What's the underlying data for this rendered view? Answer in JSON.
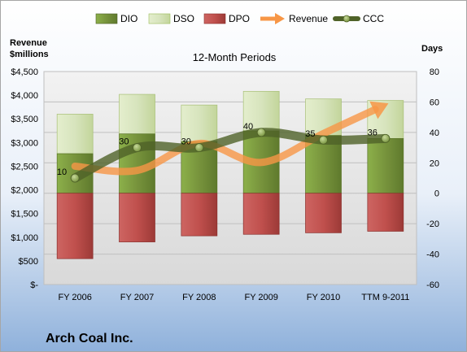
{
  "company": "Arch Coal Inc.",
  "chart_data": {
    "type": "bar",
    "title": "12-Month Periods",
    "left_axis_label": [
      "Revenue",
      "$millions"
    ],
    "right_axis_label": "Days",
    "categories": [
      "FY 2006",
      "FY 2007",
      "FY 2008",
      "FY 2009",
      "FY 2010",
      "TTM 9-2011"
    ],
    "left_ticks": [
      "$-",
      "$500",
      "$1,000",
      "$1,500",
      "$2,000",
      "$2,500",
      "$3,000",
      "$3,500",
      "$4,000",
      "$4,500"
    ],
    "right_ticks": [
      "-60",
      "-40",
      "-20",
      "0",
      "20",
      "40",
      "60",
      "80"
    ],
    "left_ylim": [
      0,
      4500
    ],
    "right_ylim": [
      -60,
      80
    ],
    "series": [
      {
        "name": "DIO",
        "kind": "bar-stacked-positive",
        "axis": "right",
        "color": "#77933c",
        "values": [
          26,
          39,
          34,
          41,
          38,
          36
        ]
      },
      {
        "name": "DSO",
        "kind": "bar-stacked-positive",
        "axis": "right",
        "color": "#d7e4bd",
        "values": [
          26,
          26,
          24,
          26,
          24,
          25
        ]
      },
      {
        "name": "DPO",
        "kind": "bar-negative",
        "axis": "right",
        "color": "#c0504d",
        "values": [
          -43,
          -32,
          -28,
          -27,
          -26,
          -25
        ]
      },
      {
        "name": "Revenue",
        "kind": "arrow-line",
        "axis": "left",
        "color": "#f79646",
        "values": [
          2500,
          2410,
          2980,
          2580,
          3190,
          3800
        ]
      },
      {
        "name": "CCC",
        "kind": "line-markers",
        "axis": "right",
        "color": "#4f6228",
        "values": [
          10,
          30,
          30,
          40,
          35,
          36
        ],
        "labels": [
          "10",
          "30",
          "30",
          "40",
          "35",
          "36"
        ]
      }
    ],
    "legend_position": "top",
    "grid": true
  }
}
